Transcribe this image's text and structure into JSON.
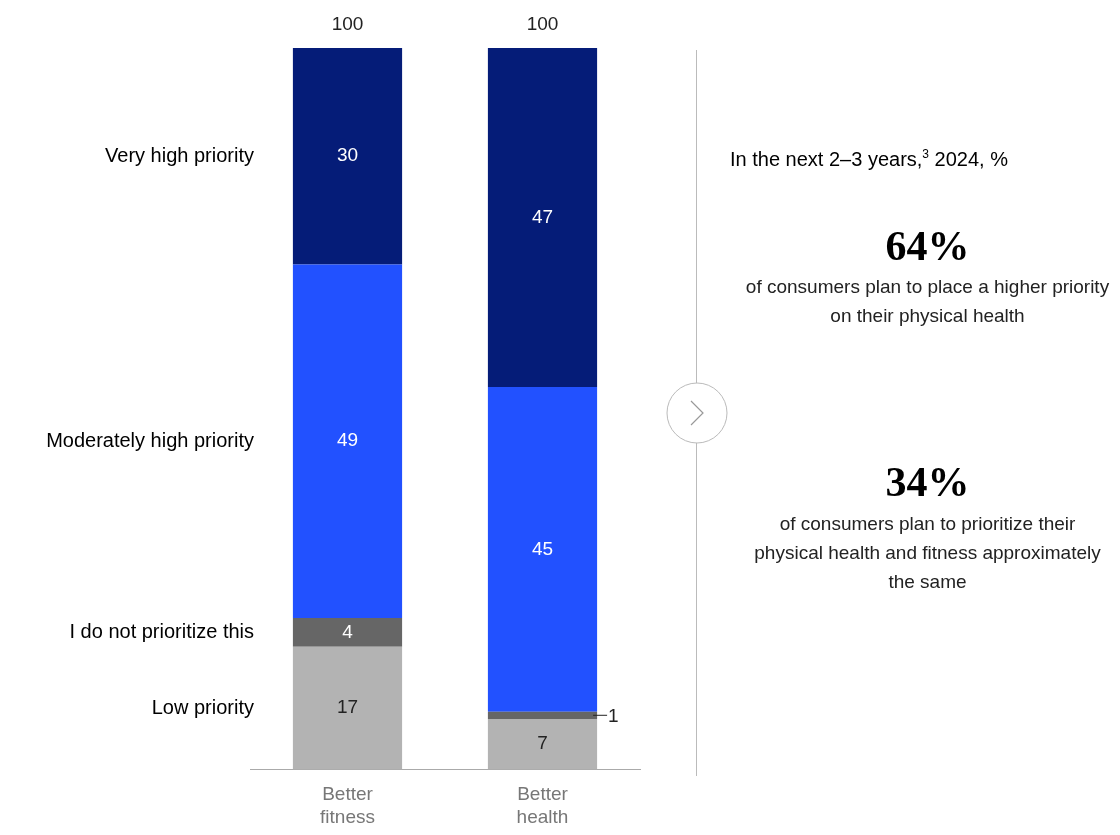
{
  "chart_data": [
    {
      "type": "bar",
      "stacked": true,
      "data_labels": true,
      "categories": [
        "Better fitness",
        "Better health"
      ],
      "series": [
        {
          "name": "Low priority",
          "color": "#b3b3b3",
          "values": [
            17,
            7
          ]
        },
        {
          "name": "I do not prioritize this",
          "color": "#666666",
          "values": [
            4,
            1
          ]
        },
        {
          "name": "Moderately high priority",
          "color": "#2251ff",
          "values": [
            49,
            45
          ]
        },
        {
          "name": "Very high priority",
          "color": "#051c78",
          "values": [
            30,
            47
          ]
        }
      ],
      "totals": [
        "100",
        "100"
      ]
    },
    {
      "type": "other",
      "title": "In the next 2–3 years,$^{3}$ 2024, %",
      "annotations": [
        "64%",
        "of consumers plan to place a higher priority on their physical health",
        "34%",
        "of consumers plan to prioritize their physical health and fitness approximately the same"
      ]
    }
  ]
}
